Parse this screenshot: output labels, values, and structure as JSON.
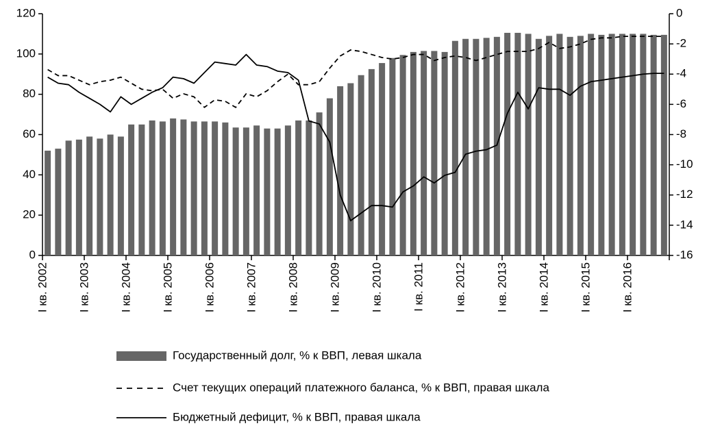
{
  "chart_data": {
    "type": "bar",
    "categories": [
      "I кв. 2002",
      null,
      null,
      null,
      "I кв. 2003",
      null,
      null,
      null,
      "I кв. 2004",
      null,
      null,
      null,
      "I кв. 2005",
      null,
      null,
      null,
      "I кв. 2006",
      null,
      null,
      null,
      "I кв. 2007",
      null,
      null,
      null,
      "I кв. 2008",
      null,
      null,
      null,
      "I кв. 2009",
      null,
      null,
      null,
      "I кв. 2010",
      null,
      null,
      null,
      "I кв. 2011",
      null,
      null,
      null,
      "I кв. 2012",
      null,
      null,
      null,
      "I кв. 2013",
      null,
      null,
      null,
      "I кв. 2014",
      null,
      null,
      null,
      "I кв. 2015",
      null,
      null,
      null,
      "I кв. 2016",
      null,
      null,
      null
    ],
    "series": [
      {
        "name": "Государственный долг, % к ВВП, левая шкала",
        "type": "bar",
        "color": "#666666",
        "values": [
          52,
          53,
          57,
          57.5,
          59,
          58,
          60,
          59,
          65,
          65,
          67,
          66.5,
          68,
          67.5,
          66.5,
          66.5,
          66.5,
          66,
          63.5,
          63.5,
          64.5,
          63,
          63,
          64.5,
          67,
          67,
          71,
          78,
          84,
          85.5,
          89.5,
          92.5,
          95.5,
          98,
          99.5,
          101,
          101.5,
          101.5,
          101,
          106.5,
          107.5,
          107.5,
          108,
          108.5,
          110.5,
          110.5,
          110,
          107.5,
          109,
          110,
          108.5,
          109,
          110,
          109.5,
          110,
          110,
          110,
          110,
          109.5,
          109.5
        ]
      },
      {
        "name": "Счет текущих операций платежного баланса, % к ВВП, правая шкала",
        "type": "line",
        "axis": "y2",
        "color": "#000000",
        "line_style": "dashed",
        "values": [
          -3.7,
          -4.1,
          -4.1,
          -4.4,
          -4.7,
          -4.5,
          -4.4,
          -4.2,
          -4.6,
          -5.0,
          -5.1,
          -5.0,
          -5.6,
          -5.3,
          -5.5,
          -6.2,
          -5.7,
          -5.8,
          -6.2,
          -5.3,
          -5.5,
          -5.1,
          -4.5,
          -4.0,
          -4.7,
          -4.7,
          -4.5,
          -3.6,
          -2.8,
          -2.4,
          -2.5,
          -2.7,
          -2.9,
          -3.0,
          -2.9,
          -2.7,
          -2.7,
          -3.1,
          -2.9,
          -2.8,
          -2.9,
          -3.1,
          -2.9,
          -2.7,
          -2.5,
          -2.5,
          -2.5,
          -2.3,
          -1.9,
          -2.3,
          -2.2,
          -2.0,
          -1.7,
          -1.6,
          -1.6,
          -1.5,
          -1.5,
          -1.5,
          -1.5,
          -1.5
        ]
      },
      {
        "name": "Бюджетный дефицит, % к ВВП, правая шкала",
        "type": "line",
        "axis": "y2",
        "color": "#000000",
        "line_style": "solid",
        "values": [
          -4.2,
          -4.6,
          -4.7,
          -5.2,
          -5.6,
          -6.0,
          -6.5,
          -5.5,
          -6.0,
          -5.6,
          -5.2,
          -4.9,
          -4.2,
          -4.3,
          -4.6,
          -3.9,
          -3.2,
          -3.3,
          -3.4,
          -2.7,
          -3.4,
          -3.5,
          -3.8,
          -3.9,
          -4.4,
          -7.1,
          -7.3,
          -8.5,
          -12.0,
          -13.7,
          -13.2,
          -12.7,
          -12.7,
          -12.8,
          -11.8,
          -11.4,
          -10.8,
          -11.2,
          -10.7,
          -10.5,
          -9.3,
          -9.1,
          -9.0,
          -8.7,
          -6.6,
          -5.2,
          -6.3,
          -4.9,
          -5.0,
          -5.0,
          -5.4,
          -4.8,
          -4.5,
          -4.4,
          -4.3,
          -4.2,
          -4.1,
          -4.0,
          -3.95,
          -3.95
        ]
      }
    ],
    "ylim": [
      0,
      120
    ],
    "yticks": [
      0,
      20,
      40,
      60,
      80,
      100,
      120
    ],
    "y2lim": [
      -16,
      0
    ],
    "y2ticks": [
      0,
      -2,
      -4,
      -6,
      -8,
      -10,
      -12,
      -14,
      -16
    ],
    "grid": false
  }
}
